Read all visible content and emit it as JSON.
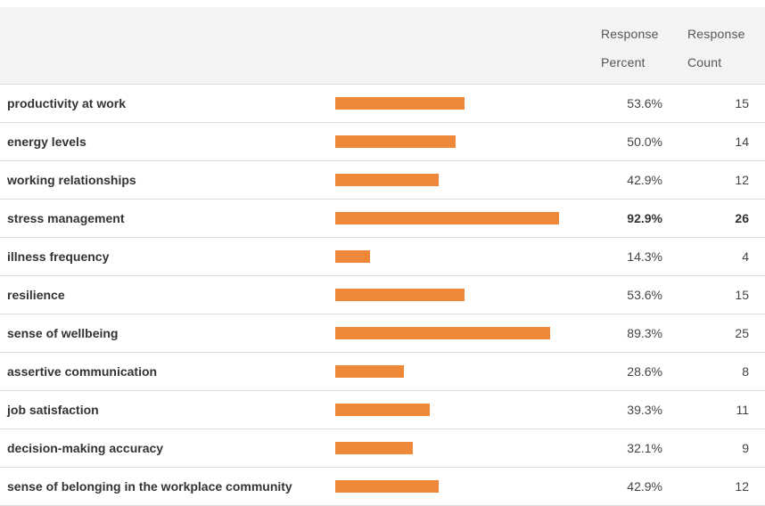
{
  "colors": {
    "bar": "#f0883a",
    "header_bg": "#f3f3f3",
    "divider": "#dcdcdc"
  },
  "header": {
    "percent_line1": "Response",
    "percent_line2": "Percent",
    "count_line1": "Response",
    "count_line2": "Count"
  },
  "chart_data": {
    "type": "bar",
    "orientation": "horizontal",
    "xlim": [
      0,
      100
    ],
    "categories": [
      "productivity at work",
      "energy levels",
      "working relationships",
      "stress management",
      "illness frequency",
      "resilience",
      "sense of wellbeing",
      "assertive communication",
      "job satisfaction",
      "decision-making accuracy",
      "sense of belonging in the workplace community"
    ],
    "values": [
      53.6,
      50.0,
      42.9,
      92.9,
      14.3,
      53.6,
      89.3,
      28.6,
      39.3,
      32.1,
      42.9
    ],
    "percent_labels": [
      "53.6%",
      "50.0%",
      "42.9%",
      "92.9%",
      "14.3%",
      "53.6%",
      "89.3%",
      "28.6%",
      "39.3%",
      "32.1%",
      "42.9%"
    ],
    "counts": [
      15,
      14,
      12,
      26,
      4,
      15,
      25,
      8,
      11,
      9,
      12
    ],
    "highlighted": [
      3
    ]
  }
}
